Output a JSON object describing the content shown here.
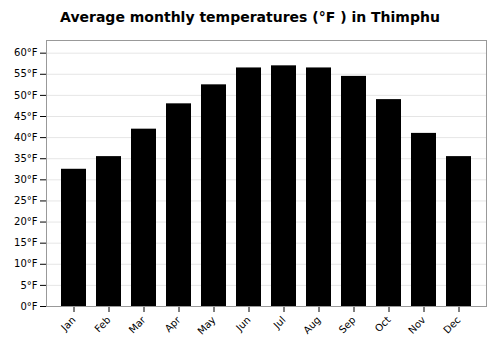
{
  "chart_data": {
    "type": "bar",
    "title": "Average monthly temperatures (°F ) in Thimphu",
    "categories": [
      "Jan",
      "Feb",
      "Mar",
      "Apr",
      "May",
      "Jun",
      "Jul",
      "Aug",
      "Sep",
      "Oct",
      "Nov",
      "Dec"
    ],
    "values": [
      32.5,
      35.5,
      42.0,
      48.0,
      52.5,
      56.5,
      57.0,
      56.5,
      54.5,
      49.0,
      41.0,
      35.5
    ],
    "ylim": [
      0,
      63
    ],
    "yticks": [
      {
        "value": 0,
        "label": "0°F"
      },
      {
        "value": 5,
        "label": "5°F"
      },
      {
        "value": 10,
        "label": "10°F"
      },
      {
        "value": 15,
        "label": "15°F"
      },
      {
        "value": 20,
        "label": "20°F"
      },
      {
        "value": 25,
        "label": "25°F"
      },
      {
        "value": 30,
        "label": "30°F"
      },
      {
        "value": 35,
        "label": "35°F"
      },
      {
        "value": 40,
        "label": "40°F"
      },
      {
        "value": 45,
        "label": "45°F"
      },
      {
        "value": 50,
        "label": "50°F"
      },
      {
        "value": 55,
        "label": "55°F"
      },
      {
        "value": 60,
        "label": "60°F"
      }
    ],
    "grid": true
  }
}
